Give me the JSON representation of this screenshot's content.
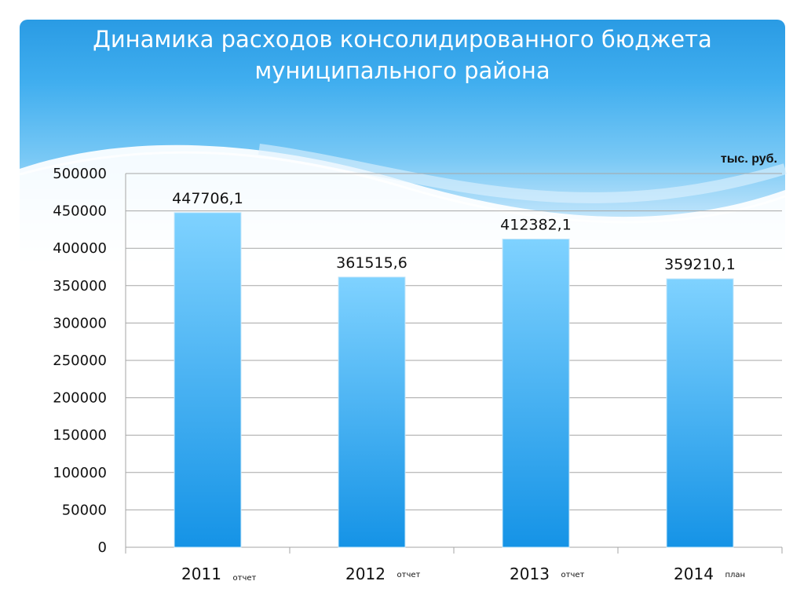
{
  "header": {
    "title_line1": "Динамика расходов консолидированного бюджета",
    "title_line2": "муниципального района"
  },
  "colors": {
    "header_dark": "#2a9be4",
    "bar_top": "#7fd2ff",
    "bar_bottom": "#1593e6",
    "gridline": "#a6a6a6"
  },
  "chart_data": {
    "type": "bar",
    "unit_label": "тыс. руб.",
    "categories": [
      "2011",
      "2012",
      "2013",
      "2014"
    ],
    "category_notes": [
      "отчет",
      "отчет",
      "отчет",
      "план"
    ],
    "values": [
      447706.1,
      361515.6,
      412382.1,
      359210.1
    ],
    "value_labels": [
      "447706,1",
      "361515,6",
      "412382,1",
      "359210,1"
    ],
    "ylim": [
      0,
      500000
    ],
    "yticks": [
      "0",
      "50000",
      "100000",
      "150000",
      "200000",
      "250000",
      "300000",
      "350000",
      "400000",
      "450000",
      "500000"
    ],
    "grid": true,
    "legend": "none"
  }
}
